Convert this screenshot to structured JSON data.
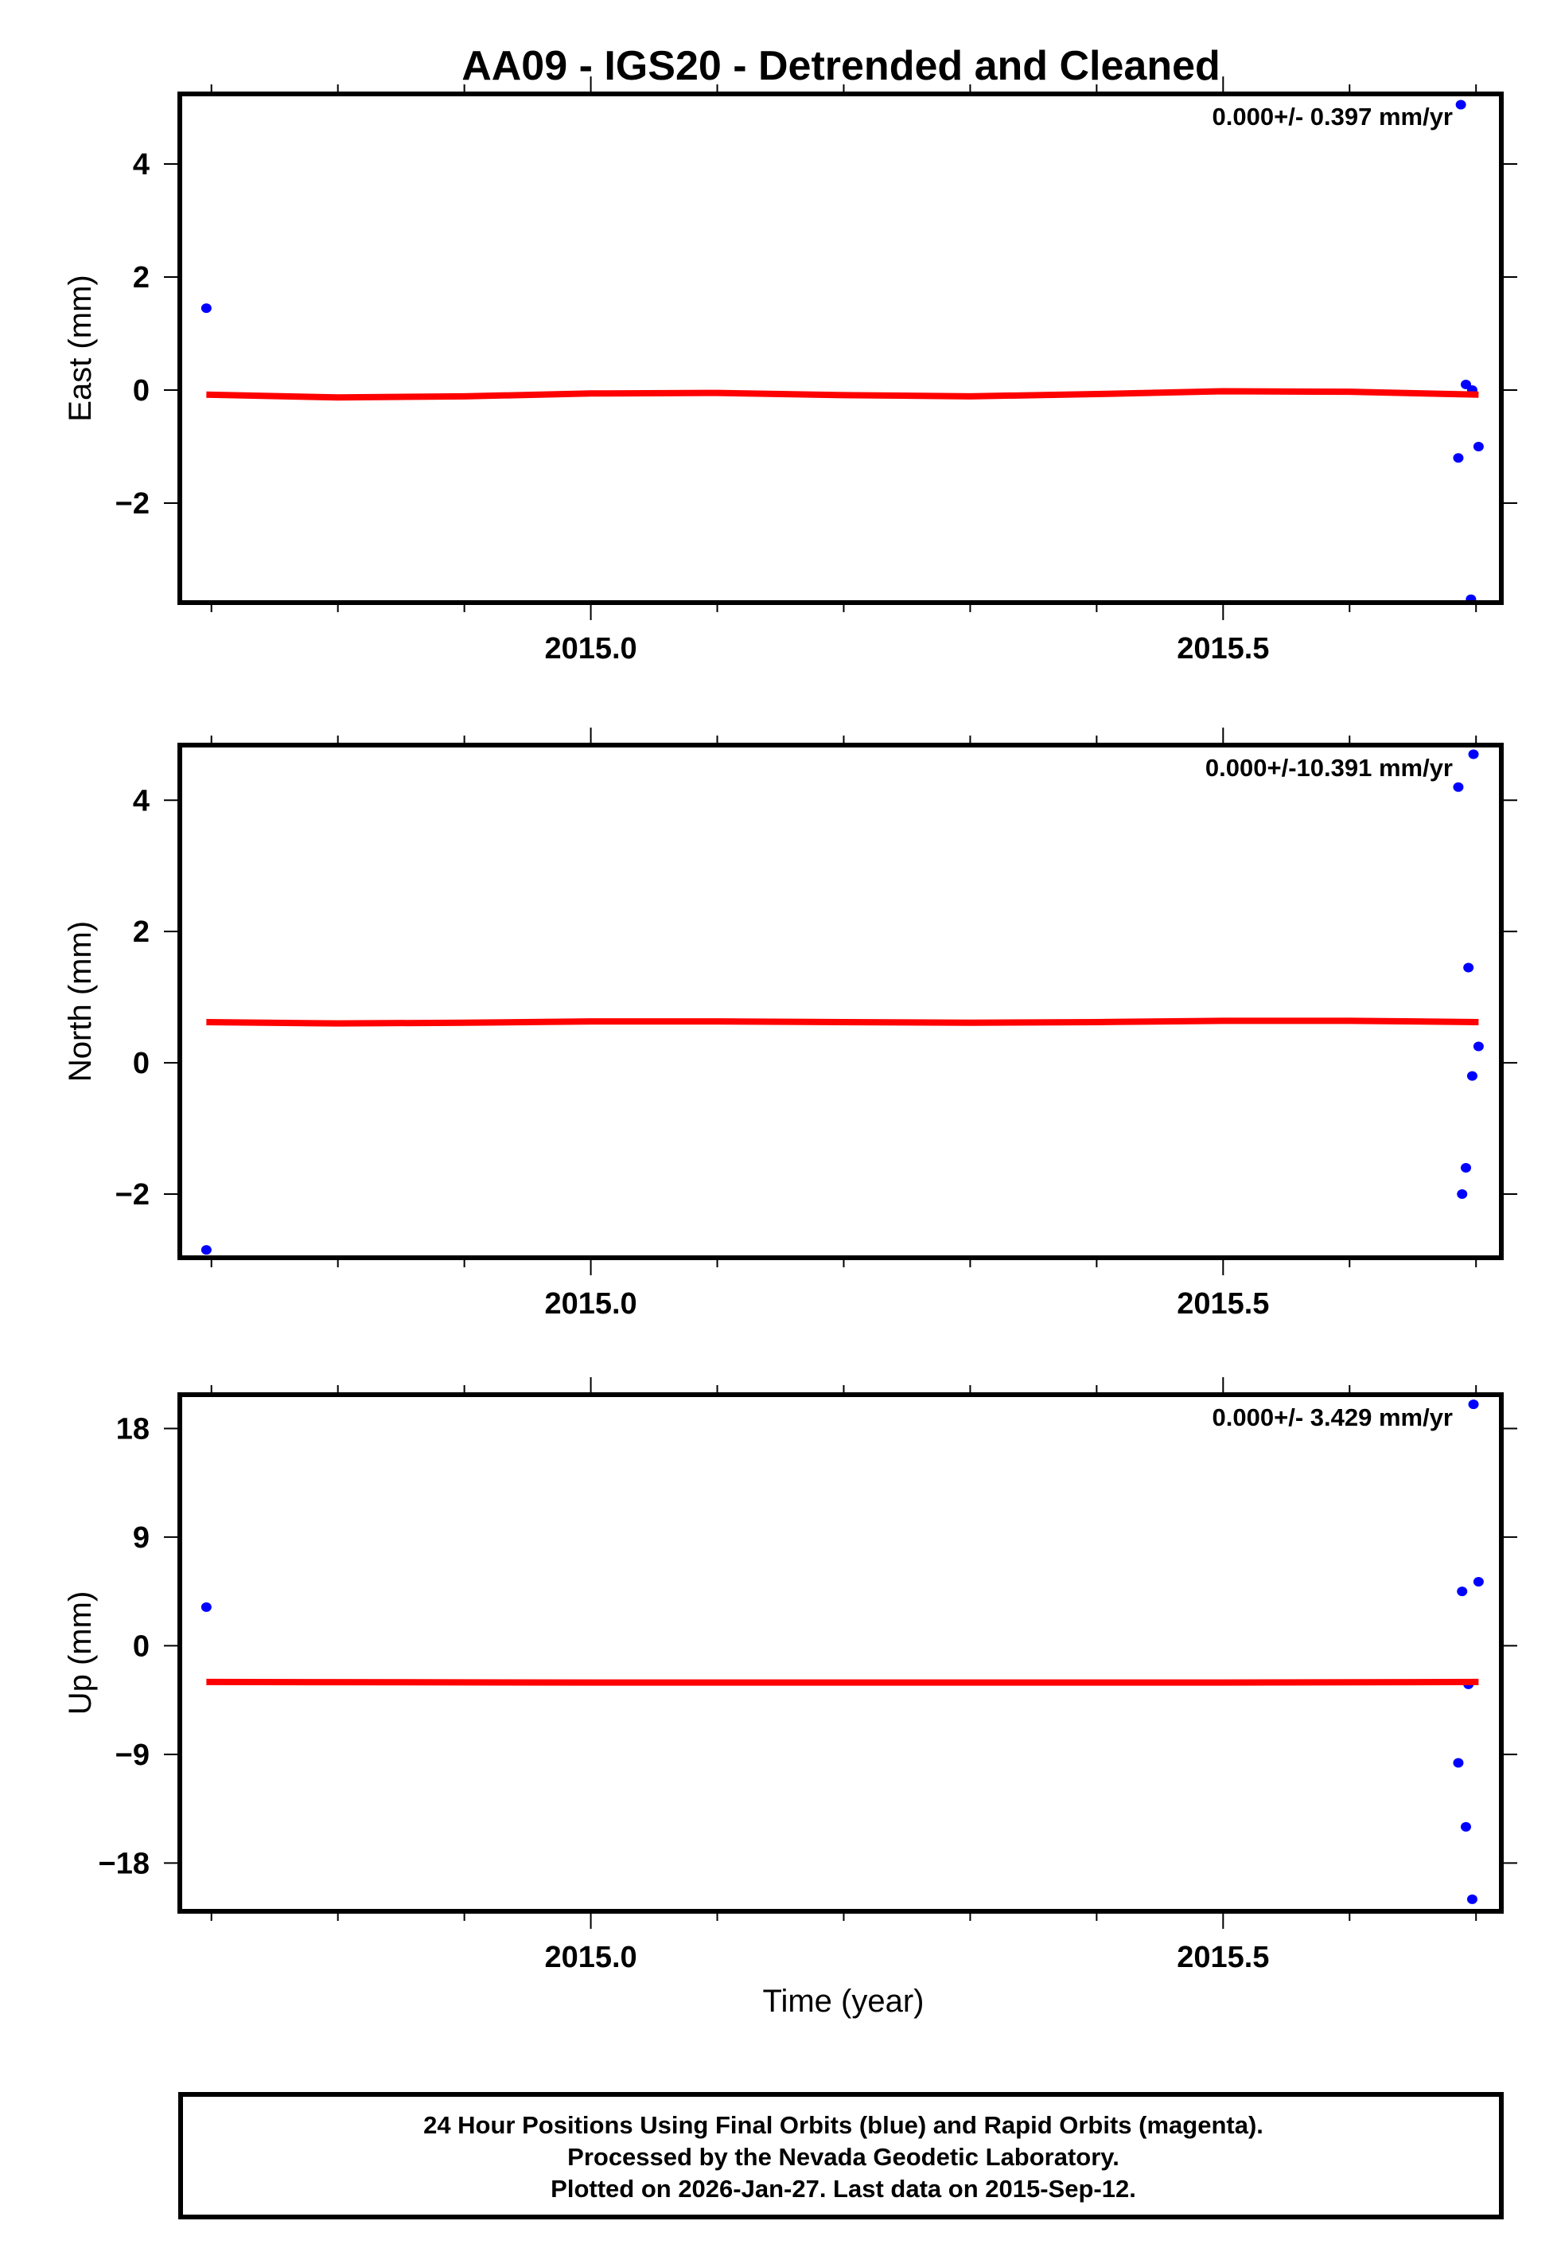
{
  "title": "AA09 - IGS20 - Detrended and Cleaned",
  "colors": {
    "final_orbits": "#0000ff",
    "rapid_orbits": "#ff00ff",
    "trend": "#ff0000",
    "frame": "#000000"
  },
  "x_axis": {
    "label": "Time (year)",
    "tick_labels": [
      "2015.0",
      "2015.5"
    ]
  },
  "panels": [
    {
      "ylabel": "East (mm)",
      "rate_label": "0.000+/- 0.397 mm/yr",
      "yticks": [
        "4",
        "2",
        "0",
        "−2"
      ]
    },
    {
      "ylabel": "North (mm)",
      "rate_label": "0.000+/-10.391 mm/yr",
      "yticks": [
        "4",
        "2",
        "0",
        "−2"
      ]
    },
    {
      "ylabel": "Up (mm)",
      "rate_label": "0.000+/- 3.429 mm/yr",
      "yticks": [
        "18",
        "9",
        "0",
        "−9",
        "−18"
      ]
    }
  ],
  "footer": {
    "line1": "24 Hour Positions Using Final Orbits (blue) and Rapid Orbits (magenta).",
    "line2": "Processed by the Nevada Geodetic Laboratory.",
    "line3": "Plotted on 2026-Jan-27. Last data on 2015-Sep-12."
  },
  "chart_data": [
    {
      "type": "scatter",
      "title": "AA09 - IGS20 - Detrended and Cleaned",
      "xlabel": "Time (year)",
      "ylabel": "East (mm)",
      "xlim": [
        2014.675,
        2015.72
      ],
      "ylim": [
        -3.76,
        5.24
      ],
      "xticks": [
        2015.0,
        2015.5
      ],
      "xminor_ticks": [
        2014.7,
        2014.8,
        2014.9,
        2015.0,
        2015.1,
        2015.2,
        2015.3,
        2015.4,
        2015.5,
        2015.6,
        2015.7
      ],
      "yticks": [
        -2,
        0,
        2,
        4
      ],
      "annotation": "0.000+/- 0.397 mm/yr",
      "series": [
        {
          "name": "Final Orbits",
          "color": "#0000ff",
          "x": [
            2014.696,
            2015.688,
            2015.692,
            2015.697,
            2015.686,
            2015.702,
            2015.696
          ],
          "y": [
            1.45,
            5.05,
            0.1,
            0.0,
            -1.2,
            -1.0,
            -3.7
          ]
        },
        {
          "name": "Trend",
          "color": "#ff0000",
          "kind": "line",
          "x": [
            2014.696,
            2014.8,
            2014.9,
            2015.0,
            2015.1,
            2015.2,
            2015.3,
            2015.4,
            2015.5,
            2015.6,
            2015.702
          ],
          "y": [
            -0.08,
            -0.13,
            -0.11,
            -0.06,
            -0.05,
            -0.09,
            -0.11,
            -0.07,
            -0.02,
            -0.03,
            -0.08
          ]
        }
      ]
    },
    {
      "type": "scatter",
      "ylabel": "North (mm)",
      "xlim": [
        2014.675,
        2015.72
      ],
      "ylim": [
        -2.97,
        4.84
      ],
      "xticks": [
        2015.0,
        2015.5
      ],
      "yticks": [
        -2,
        0,
        2,
        4
      ],
      "annotation": "0.000+/-10.391 mm/yr",
      "series": [
        {
          "name": "Final Orbits",
          "color": "#0000ff",
          "x": [
            2014.696,
            2015.686,
            2015.698,
            2015.694,
            2015.702,
            2015.697,
            2015.692,
            2015.689
          ],
          "y": [
            -2.85,
            4.2,
            4.7,
            1.45,
            0.25,
            -0.2,
            -1.6,
            -2.0
          ]
        },
        {
          "name": "Trend",
          "color": "#ff0000",
          "kind": "line",
          "x": [
            2014.696,
            2014.8,
            2014.9,
            2015.0,
            2015.1,
            2015.2,
            2015.3,
            2015.4,
            2015.5,
            2015.6,
            2015.702
          ],
          "y": [
            0.62,
            0.6,
            0.61,
            0.63,
            0.63,
            0.62,
            0.61,
            0.62,
            0.64,
            0.64,
            0.62
          ]
        }
      ]
    },
    {
      "type": "scatter",
      "ylabel": "Up (mm)",
      "xlim": [
        2014.675,
        2015.72
      ],
      "ylim": [
        -22.0,
        20.8
      ],
      "xticks": [
        2015.0,
        2015.5
      ],
      "yticks": [
        -18,
        -9,
        0,
        9,
        18
      ],
      "annotation": "0.000+/- 3.429 mm/yr",
      "series": [
        {
          "name": "Final Orbits",
          "color": "#0000ff",
          "x": [
            2014.696,
            2015.698,
            2015.702,
            2015.689,
            2015.694,
            2015.686,
            2015.692,
            2015.697
          ],
          "y": [
            3.2,
            20.0,
            5.3,
            4.5,
            -3.2,
            -9.7,
            -15.0,
            -21.0
          ]
        },
        {
          "name": "Trend",
          "color": "#ff0000",
          "kind": "line",
          "x": [
            2014.696,
            2015.0,
            2015.5,
            2015.702
          ],
          "y": [
            -3.0,
            -3.05,
            -3.05,
            -3.0
          ]
        }
      ]
    }
  ]
}
